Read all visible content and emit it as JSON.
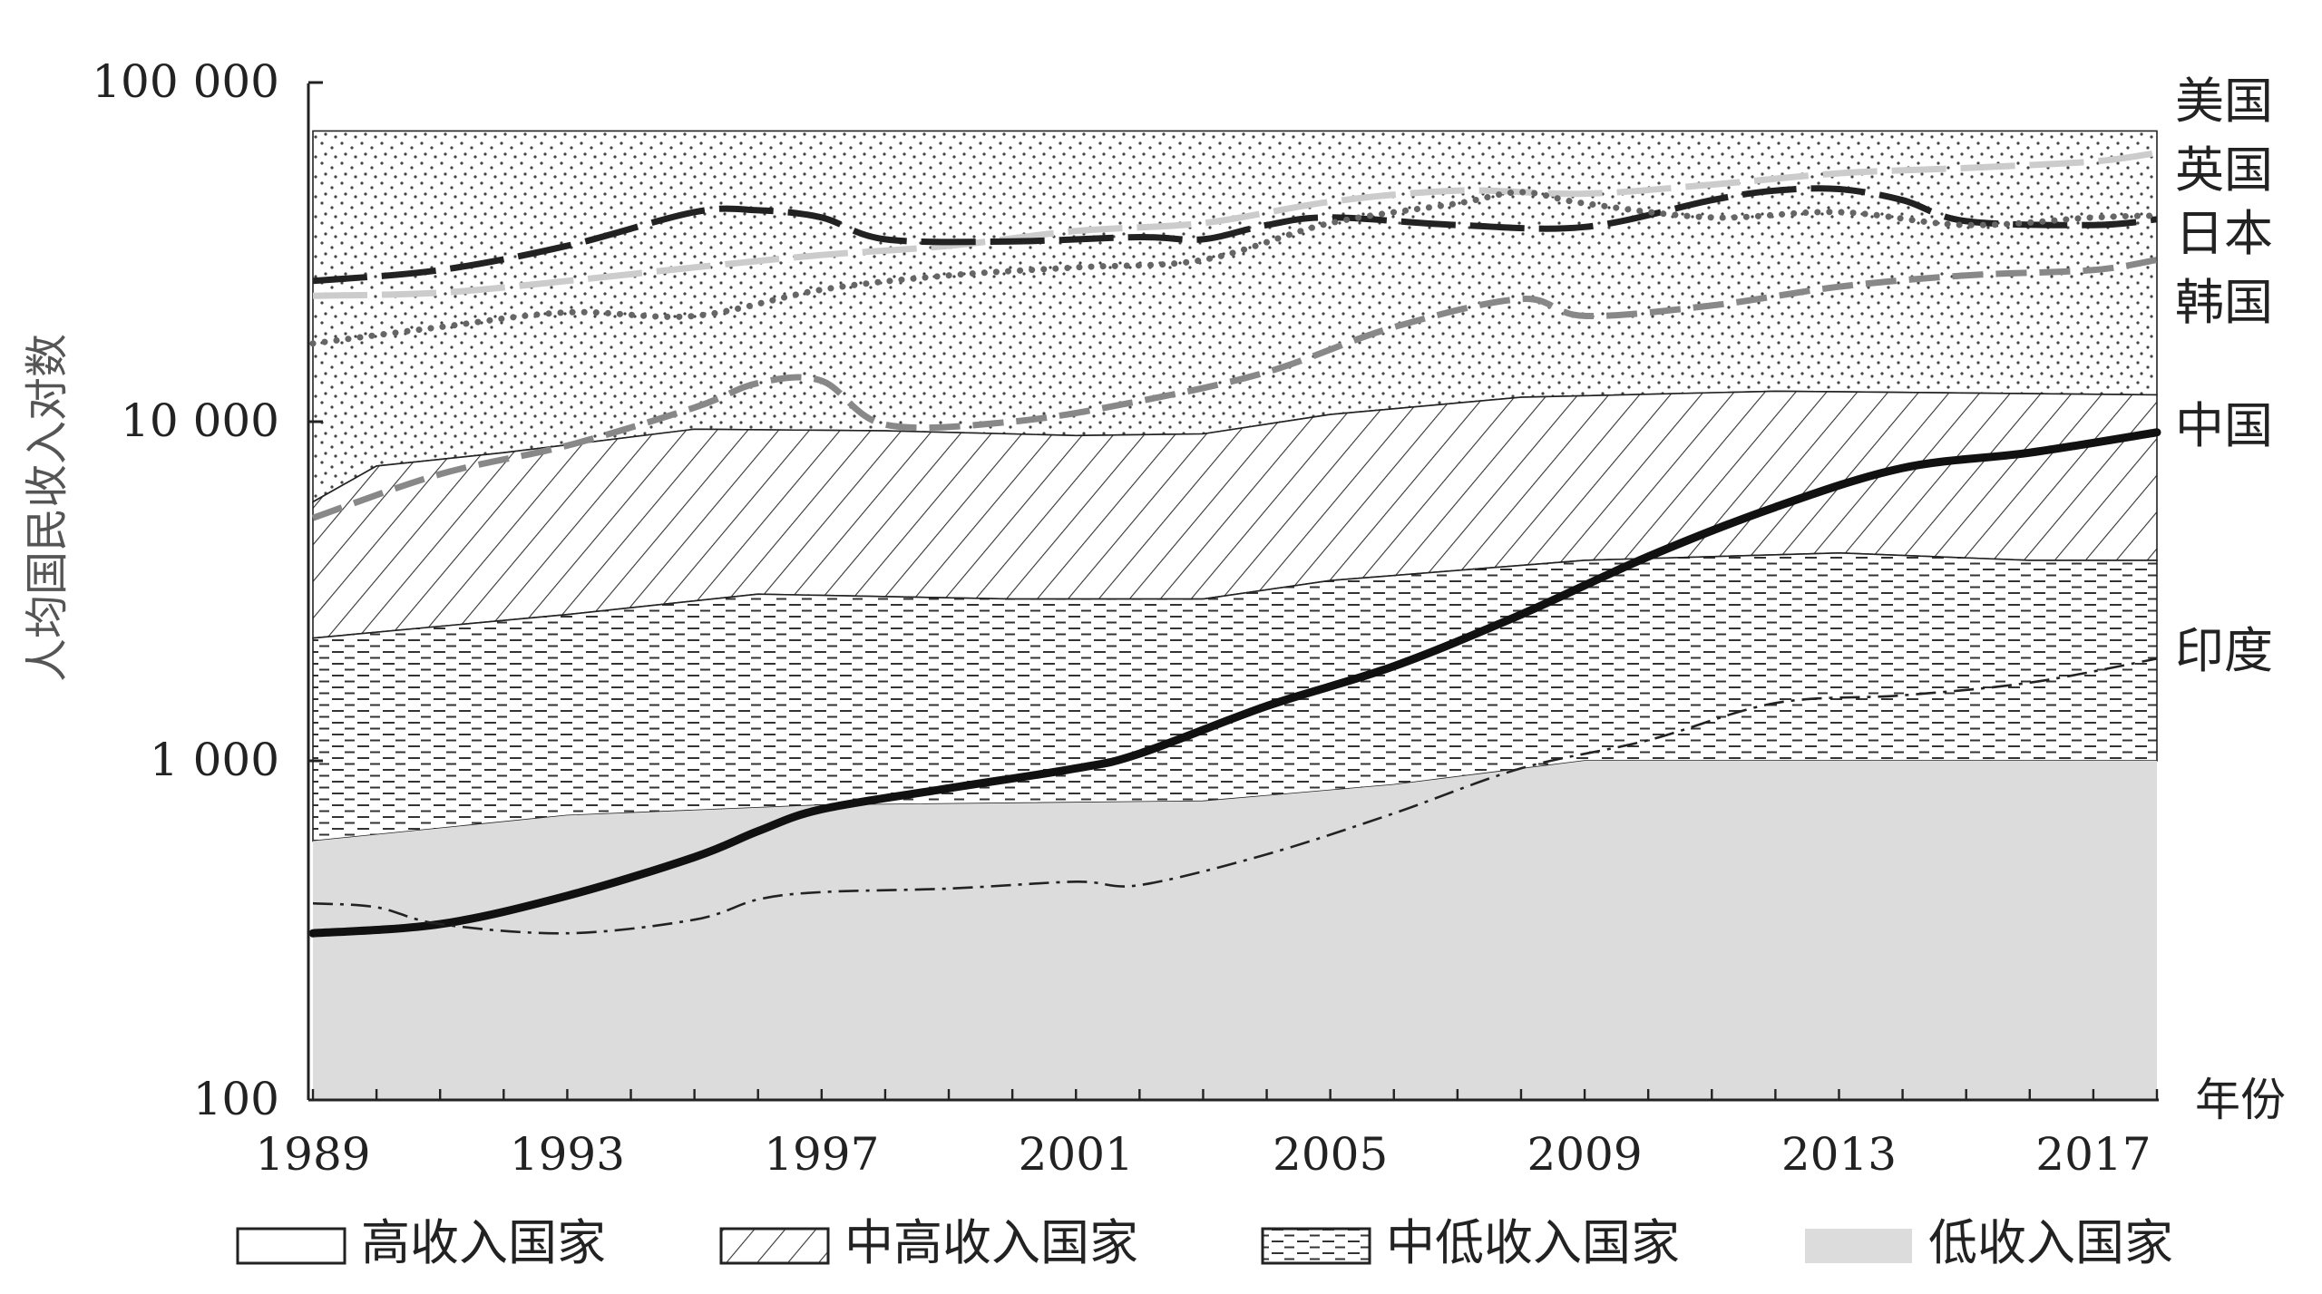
{
  "chart_data": {
    "type": "line",
    "y_scale": "log",
    "ylim": [
      100,
      100000
    ],
    "xlim": [
      1989,
      2018
    ],
    "ylabel": "人均国民收入对数",
    "xlabel_unit": "年份",
    "y_ticks": [
      {
        "value": 100,
        "label": "100"
      },
      {
        "value": 1000,
        "label": "1 000"
      },
      {
        "value": 10000,
        "label": "10 000"
      },
      {
        "value": 100000,
        "label": "100 000"
      }
    ],
    "x_tick_labels": [
      "1989",
      "1993",
      "1997",
      "2001",
      "2005",
      "2009",
      "2013",
      "2017"
    ],
    "bands": [
      {
        "name": "高收入国家",
        "pattern": "dots",
        "lower": [
          [
            1989,
            5800
          ],
          [
            1990,
            7400
          ],
          [
            1992,
            8100
          ],
          [
            1995,
            9500
          ],
          [
            1998,
            9400
          ],
          [
            2001,
            9100
          ],
          [
            2003,
            9200
          ],
          [
            2005,
            10500
          ],
          [
            2008,
            11800
          ],
          [
            2012,
            12300
          ],
          [
            2014,
            12200
          ],
          [
            2018,
            12000
          ]
        ],
        "upper": [
          [
            1989,
            72000
          ],
          [
            2018,
            72000
          ]
        ]
      },
      {
        "name": "中高收入国家",
        "pattern": "hatch",
        "lower": [
          [
            1989,
            2300
          ],
          [
            1993,
            2700
          ],
          [
            1996,
            3100
          ],
          [
            2000,
            3000
          ],
          [
            2003,
            3000
          ],
          [
            2005,
            3400
          ],
          [
            2009,
            3900
          ],
          [
            2013,
            4100
          ],
          [
            2016,
            3900
          ],
          [
            2018,
            3900
          ]
        ],
        "upper": [
          [
            1989,
            5800
          ],
          [
            1990,
            7400
          ],
          [
            1992,
            8100
          ],
          [
            1995,
            9500
          ],
          [
            1998,
            9400
          ],
          [
            2001,
            9100
          ],
          [
            2003,
            9200
          ],
          [
            2005,
            10500
          ],
          [
            2008,
            11800
          ],
          [
            2012,
            12300
          ],
          [
            2014,
            12200
          ],
          [
            2018,
            12000
          ]
        ]
      },
      {
        "name": "中低收入国家",
        "pattern": "dashes",
        "lower": [
          [
            1989,
            580
          ],
          [
            1993,
            690
          ],
          [
            1997,
            740
          ],
          [
            2003,
            760
          ],
          [
            2006,
            850
          ],
          [
            2009,
            1000
          ],
          [
            2018,
            1000
          ]
        ],
        "upper": [
          [
            1989,
            2300
          ],
          [
            1993,
            2700
          ],
          [
            1996,
            3100
          ],
          [
            2000,
            3000
          ],
          [
            2003,
            3000
          ],
          [
            2005,
            3400
          ],
          [
            2009,
            3900
          ],
          [
            2013,
            4100
          ],
          [
            2016,
            3900
          ],
          [
            2018,
            3900
          ]
        ]
      },
      {
        "name": "低收入国家",
        "pattern": "gray",
        "lower": [
          [
            1989,
            100
          ],
          [
            2018,
            100
          ]
        ],
        "upper": [
          [
            1989,
            580
          ],
          [
            1993,
            690
          ],
          [
            1997,
            740
          ],
          [
            2003,
            760
          ],
          [
            2006,
            850
          ],
          [
            2009,
            1000
          ],
          [
            2018,
            1000
          ]
        ]
      }
    ],
    "series": [
      {
        "name": "美国",
        "color": "#cccccc",
        "style": "long-dash",
        "points": [
          [
            1989,
            23500
          ],
          [
            1991,
            24000
          ],
          [
            1993,
            26000
          ],
          [
            1995,
            28500
          ],
          [
            1997,
            31000
          ],
          [
            1999,
            33000
          ],
          [
            2001,
            36500
          ],
          [
            2003,
            38500
          ],
          [
            2005,
            44500
          ],
          [
            2007,
            48000
          ],
          [
            2009,
            47000
          ],
          [
            2011,
            50000
          ],
          [
            2013,
            54000
          ],
          [
            2015,
            56000
          ],
          [
            2017,
            58500
          ],
          [
            2018,
            62000
          ]
        ]
      },
      {
        "name": "英国",
        "color": "#222222",
        "style": "long-dash",
        "points": [
          [
            1989,
            26000
          ],
          [
            1991,
            28000
          ],
          [
            1993,
            33000
          ],
          [
            1995,
            41500
          ],
          [
            1996,
            42000
          ],
          [
            1997,
            40000
          ],
          [
            1998,
            34500
          ],
          [
            2000,
            34000
          ],
          [
            2002,
            35000
          ],
          [
            2003,
            34500
          ],
          [
            2004,
            38000
          ],
          [
            2005,
            40000
          ],
          [
            2007,
            38000
          ],
          [
            2009,
            37500
          ],
          [
            2011,
            45000
          ],
          [
            2012,
            48000
          ],
          [
            2013,
            48500
          ],
          [
            2014,
            45000
          ],
          [
            2015,
            39000
          ],
          [
            2017,
            38000
          ],
          [
            2018,
            39500
          ]
        ]
      },
      {
        "name": "日本",
        "color": "#666666",
        "style": "dots",
        "points": [
          [
            1989,
            17000
          ],
          [
            1991,
            19000
          ],
          [
            1993,
            21000
          ],
          [
            1995,
            20500
          ],
          [
            1997,
            24500
          ],
          [
            1999,
            27000
          ],
          [
            2001,
            28500
          ],
          [
            2003,
            30000
          ],
          [
            2005,
            38500
          ],
          [
            2007,
            44000
          ],
          [
            2008,
            47500
          ],
          [
            2009,
            44000
          ],
          [
            2011,
            40000
          ],
          [
            2013,
            41500
          ],
          [
            2015,
            38000
          ],
          [
            2017,
            40000
          ],
          [
            2018,
            40500
          ]
        ]
      },
      {
        "name": "韩国",
        "color": "#888888",
        "style": "dash",
        "points": [
          [
            1989,
            5200
          ],
          [
            1991,
            7000
          ],
          [
            1993,
            8500
          ],
          [
            1995,
            11000
          ],
          [
            1996,
            13000
          ],
          [
            1997,
            13200
          ],
          [
            1998,
            9800
          ],
          [
            2000,
            10000
          ],
          [
            2002,
            11500
          ],
          [
            2004,
            14000
          ],
          [
            2006,
            19000
          ],
          [
            2008,
            23000
          ],
          [
            2009,
            20500
          ],
          [
            2011,
            22000
          ],
          [
            2013,
            25000
          ],
          [
            2015,
            27000
          ],
          [
            2017,
            28000
          ],
          [
            2018,
            30000
          ]
        ]
      },
      {
        "name": "中国",
        "color": "#111111",
        "style": "solid",
        "points": [
          [
            1989,
            310
          ],
          [
            1991,
            330
          ],
          [
            1993,
            400
          ],
          [
            1995,
            520
          ],
          [
            1996,
            620
          ],
          [
            1997,
            720
          ],
          [
            1999,
            830
          ],
          [
            2001,
            950
          ],
          [
            2002,
            1050
          ],
          [
            2004,
            1450
          ],
          [
            2006,
            1900
          ],
          [
            2008,
            2700
          ],
          [
            2010,
            4000
          ],
          [
            2012,
            5600
          ],
          [
            2014,
            7300
          ],
          [
            2016,
            8100
          ],
          [
            2018,
            9300
          ]
        ]
      },
      {
        "name": "印度",
        "color": "#222222",
        "style": "dash-dot",
        "points": [
          [
            1989,
            380
          ],
          [
            1990,
            370
          ],
          [
            1991,
            330
          ],
          [
            1993,
            310
          ],
          [
            1995,
            340
          ],
          [
            1996,
            390
          ],
          [
            1997,
            410
          ],
          [
            1999,
            420
          ],
          [
            2001,
            440
          ],
          [
            2002,
            430
          ],
          [
            2004,
            530
          ],
          [
            2006,
            700
          ],
          [
            2008,
            950
          ],
          [
            2010,
            1150
          ],
          [
            2012,
            1480
          ],
          [
            2014,
            1560
          ],
          [
            2016,
            1700
          ],
          [
            2018,
            2000
          ]
        ]
      }
    ]
  }
}
